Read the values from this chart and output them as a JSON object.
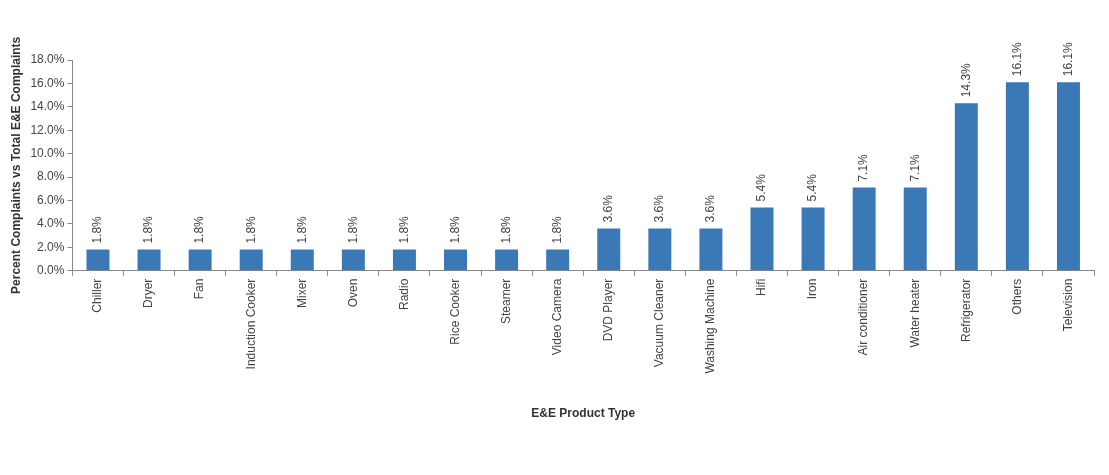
{
  "chart_data": {
    "type": "bar",
    "xlabel": "E&E Product Type",
    "ylabel": "Percent Complaints vs Total E&E Complaints",
    "categories": [
      "Chiller",
      "Dryer",
      "Fan",
      "Induction Cooker",
      "Mixer",
      "Oven",
      "Radio",
      "Rice Cooker",
      "Steamer",
      "Video Camera",
      "DVD Player",
      "Vacuum Cleaner",
      "Washing Machine",
      "Hifi",
      "Iron",
      "Air conditioner",
      "Water heater",
      "Refrigerator",
      "Others",
      "Television"
    ],
    "values": [
      1.8,
      1.8,
      1.8,
      1.8,
      1.8,
      1.8,
      1.8,
      1.8,
      1.8,
      1.8,
      3.6,
      3.6,
      3.6,
      5.4,
      5.4,
      7.1,
      7.1,
      14.3,
      16.1,
      16.1
    ],
    "value_labels": [
      "1.8%",
      "1.8%",
      "1.8%",
      "1.8%",
      "1.8%",
      "1.8%",
      "1.8%",
      "1.8%",
      "1.8%",
      "1.8%",
      "3.6%",
      "3.6%",
      "3.6%",
      "5.4%",
      "5.4%",
      "7.1%",
      "7.1%",
      "14.3%",
      "16.1%",
      "16.1%"
    ],
    "color": "#3b78b6",
    "ylim": [
      0,
      18
    ],
    "yticks": [
      {
        "value": 0,
        "label": "0.0%"
      },
      {
        "value": 2,
        "label": "2.0%"
      },
      {
        "value": 4,
        "label": "4.0%"
      },
      {
        "value": 6,
        "label": "6.0%"
      },
      {
        "value": 8,
        "label": "8.0%"
      },
      {
        "value": 10,
        "label": "10.0%"
      },
      {
        "value": 12,
        "label": "12.0%"
      },
      {
        "value": 14,
        "label": "14.0%"
      },
      {
        "value": 16,
        "label": "16.0%"
      },
      {
        "value": 18,
        "label": "18.0%"
      }
    ],
    "legend": false
  }
}
